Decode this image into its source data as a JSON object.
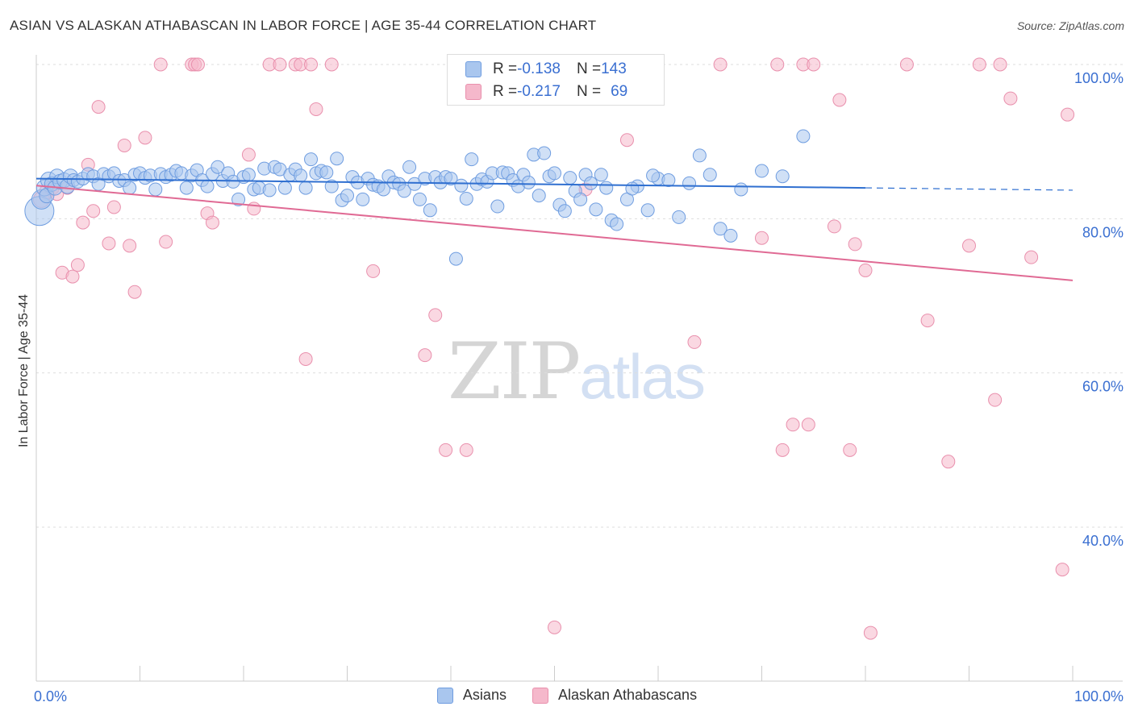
{
  "header": {
    "title": "ASIAN VS ALASKAN ATHABASCAN IN LABOR FORCE | AGE 35-44 CORRELATION CHART",
    "source": "Source: ZipAtlas.com"
  },
  "watermark": {
    "zip": "ZIP",
    "atlas": "atlas"
  },
  "legend_top": {
    "rows": [
      {
        "r_label": "R = ",
        "r_value": "-0.138",
        "n_label": "N = ",
        "n_value": "143"
      },
      {
        "r_label": "R = ",
        "r_value": "-0.217",
        "n_label": "N = ",
        "n_value": "69"
      }
    ]
  },
  "colors": {
    "asians_fill": "#a9c6ee",
    "asians_stroke": "#6f9de0",
    "asians_line": "#2f6fd0",
    "alaskan_fill": "#f5b8cb",
    "alaskan_stroke": "#e990ad",
    "alaskan_line": "#e06a94",
    "tick_label": "#3a6fd1",
    "grid": "#dddddd"
  },
  "chart_data": {
    "type": "scatter",
    "title": "ASIAN VS ALASKAN ATHABASCAN IN LABOR FORCE | AGE 35-44 CORRELATION CHART",
    "xlabel": "",
    "ylabel": "In Labor Force | Age 35-44",
    "xlim": [
      0,
      100
    ],
    "ylim": [
      20,
      102
    ],
    "x_tick_labels": [
      "0.0%",
      "100.0%"
    ],
    "y_ticks": [
      40,
      60,
      80,
      100
    ],
    "y_tick_labels": [
      "40.0%",
      "60.0%",
      "80.0%",
      "100.0%"
    ],
    "grid": true,
    "legend_position": "bottom",
    "series": [
      {
        "name": "Asians",
        "R": -0.138,
        "N": 143,
        "trend": {
          "x0": 0,
          "y0": 85.2,
          "x1": 80,
          "y1": 84.0,
          "dashed_to_x": 100,
          "dashed_to_y": 83.7
        },
        "points": [
          [
            0.3,
            81.0,
            18
          ],
          [
            0.5,
            82.5,
            12
          ],
          [
            0.8,
            84.0,
            10
          ],
          [
            1.0,
            83.0,
            9
          ],
          [
            1.2,
            85.0,
            10
          ],
          [
            1.5,
            84.5,
            9
          ],
          [
            1.8,
            84.0,
            9
          ],
          [
            2.0,
            85.5,
            9
          ],
          [
            2.3,
            84.8,
            9
          ],
          [
            2.7,
            85.0,
            9
          ],
          [
            3.0,
            84.2,
            9
          ],
          [
            3.3,
            85.5,
            9
          ],
          [
            3.6,
            85.0,
            8
          ],
          [
            4.0,
            84.8,
            8
          ],
          [
            4.5,
            85.2,
            8
          ],
          [
            5.0,
            85.8,
            8
          ],
          [
            5.5,
            85.5,
            8
          ],
          [
            6.0,
            84.5,
            8
          ],
          [
            6.5,
            85.8,
            8
          ],
          [
            7.0,
            85.5,
            8
          ],
          [
            7.5,
            85.9,
            8
          ],
          [
            8.0,
            84.9,
            8
          ],
          [
            8.5,
            85.0,
            8
          ],
          [
            9.0,
            84.0,
            8
          ],
          [
            9.5,
            85.7,
            8
          ],
          [
            10.0,
            85.9,
            8
          ],
          [
            10.5,
            85.3,
            8
          ],
          [
            11.0,
            85.6,
            8
          ],
          [
            11.5,
            83.8,
            8
          ],
          [
            12.0,
            85.8,
            8
          ],
          [
            12.5,
            85.4,
            8
          ],
          [
            13.0,
            85.7,
            8
          ],
          [
            13.5,
            86.2,
            8
          ],
          [
            14.0,
            85.9,
            8
          ],
          [
            14.5,
            84.0,
            8
          ],
          [
            15.0,
            85.6,
            8
          ],
          [
            15.5,
            86.3,
            8
          ],
          [
            16.0,
            85.0,
            8
          ],
          [
            16.5,
            84.2,
            8
          ],
          [
            17.0,
            85.8,
            8
          ],
          [
            17.5,
            86.7,
            8
          ],
          [
            18.0,
            84.9,
            8
          ],
          [
            18.5,
            85.9,
            8
          ],
          [
            19.0,
            84.8,
            8
          ],
          [
            19.5,
            82.5,
            8
          ],
          [
            20.0,
            85.4,
            8
          ],
          [
            20.5,
            85.7,
            8
          ],
          [
            21.0,
            83.8,
            8
          ],
          [
            21.5,
            84.0,
            8
          ],
          [
            22.0,
            86.5,
            8
          ],
          [
            22.5,
            83.7,
            8
          ],
          [
            23.0,
            86.7,
            8
          ],
          [
            23.5,
            86.4,
            8
          ],
          [
            24.0,
            84.0,
            8
          ],
          [
            24.5,
            85.7,
            8
          ],
          [
            25.0,
            86.4,
            8
          ],
          [
            25.5,
            85.6,
            8
          ],
          [
            26.0,
            84.0,
            8
          ],
          [
            26.5,
            87.7,
            8
          ],
          [
            27.0,
            85.9,
            8
          ],
          [
            27.5,
            86.2,
            8
          ],
          [
            28.0,
            86.0,
            8
          ],
          [
            28.5,
            84.2,
            8
          ],
          [
            29.0,
            87.8,
            8
          ],
          [
            29.5,
            82.4,
            8
          ],
          [
            30.0,
            83.0,
            8
          ],
          [
            30.5,
            85.4,
            8
          ],
          [
            31.0,
            84.7,
            8
          ],
          [
            31.5,
            82.5,
            8
          ],
          [
            32.0,
            85.2,
            8
          ],
          [
            32.5,
            84.4,
            8
          ],
          [
            33.0,
            84.2,
            8
          ],
          [
            33.5,
            83.8,
            8
          ],
          [
            34.0,
            85.5,
            8
          ],
          [
            34.5,
            84.7,
            8
          ],
          [
            35.0,
            84.5,
            8
          ],
          [
            35.5,
            83.6,
            8
          ],
          [
            36.0,
            86.7,
            8
          ],
          [
            36.5,
            84.5,
            8
          ],
          [
            37.0,
            82.5,
            8
          ],
          [
            37.5,
            85.2,
            8
          ],
          [
            38.0,
            81.1,
            8
          ],
          [
            38.5,
            85.4,
            8
          ],
          [
            39.0,
            84.7,
            8
          ],
          [
            39.5,
            85.4,
            8
          ],
          [
            40.0,
            85.2,
            8
          ],
          [
            40.5,
            74.8,
            8
          ],
          [
            41.0,
            84.3,
            8
          ],
          [
            41.5,
            82.6,
            8
          ],
          [
            42.0,
            87.7,
            8
          ],
          [
            42.5,
            84.5,
            8
          ],
          [
            43.0,
            85.1,
            8
          ],
          [
            43.5,
            84.8,
            8
          ],
          [
            44.0,
            85.9,
            8
          ],
          [
            44.5,
            81.6,
            8
          ],
          [
            45.0,
            86.0,
            8
          ],
          [
            45.5,
            85.9,
            8
          ],
          [
            46.0,
            85.0,
            8
          ],
          [
            46.5,
            84.2,
            8
          ],
          [
            47.0,
            85.7,
            8
          ],
          [
            47.5,
            84.7,
            8
          ],
          [
            48.0,
            88.3,
            8
          ],
          [
            48.5,
            83.0,
            8
          ],
          [
            49.0,
            88.5,
            8
          ],
          [
            49.5,
            85.5,
            8
          ],
          [
            50.0,
            85.9,
            8
          ],
          [
            50.5,
            81.8,
            8
          ],
          [
            51.0,
            81.0,
            8
          ],
          [
            51.5,
            85.3,
            8
          ],
          [
            52.0,
            83.6,
            8
          ],
          [
            52.5,
            82.5,
            8
          ],
          [
            53.0,
            85.7,
            8
          ],
          [
            53.5,
            84.6,
            8
          ],
          [
            54.0,
            81.2,
            8
          ],
          [
            54.5,
            85.7,
            8
          ],
          [
            55.0,
            84.0,
            8
          ],
          [
            55.5,
            79.8,
            8
          ],
          [
            56.0,
            79.3,
            8
          ],
          [
            57.0,
            82.5,
            8
          ],
          [
            58.0,
            84.2,
            8
          ],
          [
            59.0,
            81.1,
            8
          ],
          [
            60.0,
            85.2,
            8
          ],
          [
            61.0,
            85.0,
            8
          ],
          [
            62.0,
            80.2,
            8
          ],
          [
            63.0,
            84.6,
            8
          ],
          [
            64.0,
            88.2,
            8
          ],
          [
            65.0,
            85.7,
            8
          ],
          [
            66.0,
            78.7,
            8
          ],
          [
            67.0,
            77.8,
            8
          ],
          [
            68.0,
            83.8,
            8
          ],
          [
            70.0,
            86.2,
            8
          ],
          [
            72.0,
            85.5,
            8
          ],
          [
            74.0,
            90.7,
            8
          ],
          [
            59.5,
            85.6,
            8
          ],
          [
            57.5,
            83.9,
            8
          ]
        ]
      },
      {
        "name": "Alaskan Athabascans",
        "R": -0.217,
        "N": 69,
        "trend": {
          "x0": 0,
          "y0": 84.3,
          "x1": 100,
          "y1": 72.0
        },
        "points": [
          [
            0.5,
            82.5,
            10
          ],
          [
            1.0,
            83.5,
            9
          ],
          [
            1.5,
            84.0,
            9
          ],
          [
            2.0,
            83.2,
            8
          ],
          [
            2.5,
            73.0,
            8
          ],
          [
            3.0,
            84.0,
            8
          ],
          [
            3.5,
            72.5,
            8
          ],
          [
            4.0,
            74.0,
            8
          ],
          [
            4.5,
            79.5,
            8
          ],
          [
            5.0,
            87.0,
            8
          ],
          [
            5.5,
            81.0,
            8
          ],
          [
            6.0,
            94.5,
            8
          ],
          [
            7.0,
            76.8,
            8
          ],
          [
            7.5,
            81.5,
            8
          ],
          [
            8.5,
            89.5,
            8
          ],
          [
            9.0,
            76.5,
            8
          ],
          [
            9.5,
            70.5,
            8
          ],
          [
            10.5,
            90.5,
            8
          ],
          [
            12.0,
            100,
            8
          ],
          [
            12.5,
            77.0,
            8
          ],
          [
            15.0,
            100,
            8
          ],
          [
            15.3,
            100,
            8
          ],
          [
            15.6,
            100,
            8
          ],
          [
            16.5,
            80.7,
            8
          ],
          [
            17.0,
            79.5,
            8
          ],
          [
            20.5,
            88.3,
            8
          ],
          [
            21.0,
            81.3,
            8
          ],
          [
            22.5,
            100,
            8
          ],
          [
            23.5,
            100,
            8
          ],
          [
            25.0,
            100,
            8
          ],
          [
            25.5,
            100,
            8
          ],
          [
            26.0,
            61.8,
            8
          ],
          [
            26.5,
            100,
            8
          ],
          [
            27.0,
            94.2,
            8
          ],
          [
            28.5,
            100,
            8
          ],
          [
            32.5,
            73.2,
            8
          ],
          [
            37.5,
            62.3,
            8
          ],
          [
            38.5,
            67.5,
            8
          ],
          [
            39.5,
            50.0,
            8
          ],
          [
            41.5,
            50.0,
            8
          ],
          [
            50.0,
            27.0,
            8
          ],
          [
            53.0,
            83.8,
            8
          ],
          [
            57.0,
            90.2,
            8
          ],
          [
            58.5,
            100,
            8
          ],
          [
            63.5,
            64.0,
            8
          ],
          [
            66.0,
            100,
            8
          ],
          [
            70.0,
            77.5,
            8
          ],
          [
            71.5,
            100,
            8
          ],
          [
            72.0,
            50.0,
            8
          ],
          [
            73.0,
            53.3,
            8
          ],
          [
            74.0,
            100,
            8
          ],
          [
            74.5,
            53.3,
            8
          ],
          [
            75.0,
            100,
            8
          ],
          [
            77.0,
            79.0,
            8
          ],
          [
            77.5,
            95.4,
            8
          ],
          [
            78.5,
            50.0,
            8
          ],
          [
            79.0,
            76.7,
            8
          ],
          [
            80.0,
            73.3,
            8
          ],
          [
            80.5,
            26.3,
            8
          ],
          [
            84.0,
            100,
            8
          ],
          [
            86.0,
            66.8,
            8
          ],
          [
            88.0,
            48.5,
            8
          ],
          [
            90.0,
            76.5,
            8
          ],
          [
            91.0,
            100,
            8
          ],
          [
            92.5,
            56.5,
            8
          ],
          [
            93.0,
            100,
            8
          ],
          [
            94.0,
            95.6,
            8
          ],
          [
            96.0,
            75.0,
            8
          ],
          [
            99.0,
            34.5,
            8
          ],
          [
            99.5,
            93.5,
            8
          ]
        ]
      }
    ]
  }
}
